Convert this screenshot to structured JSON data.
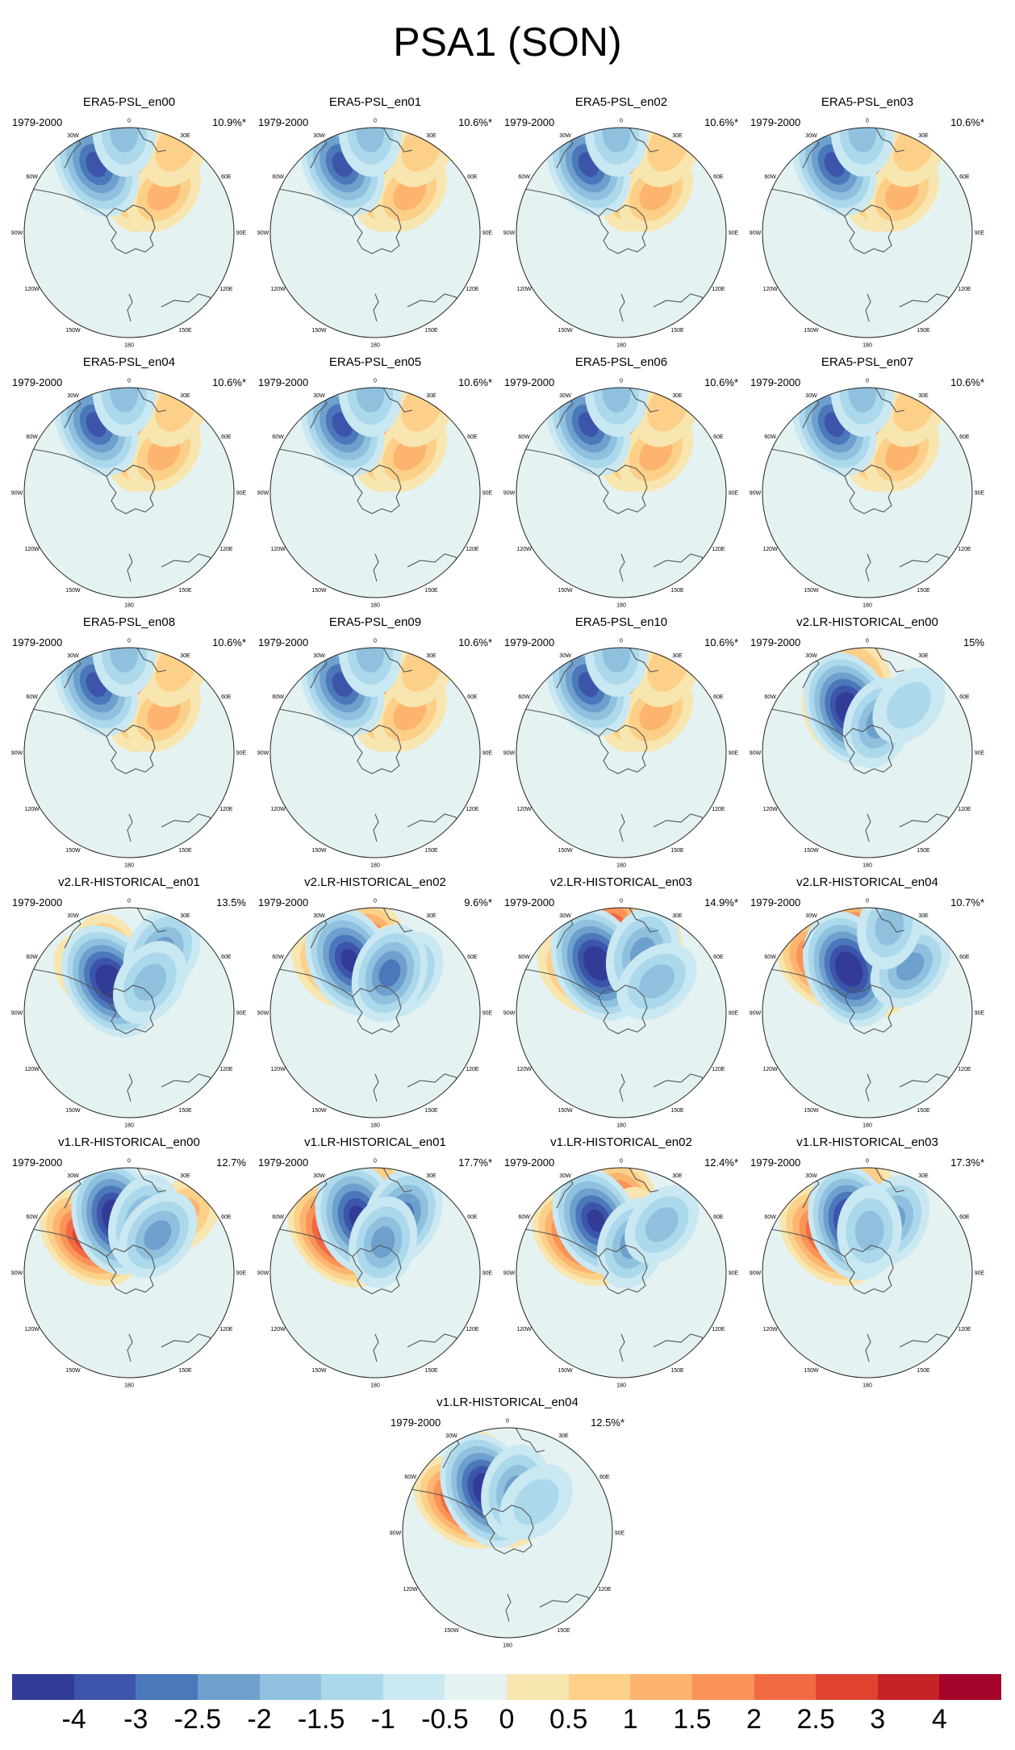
{
  "figure": {
    "title": "PSA1 (SON)",
    "period_label": "1979-2000",
    "lon_labels": [
      "0",
      "30E",
      "60E",
      "90E",
      "120E",
      "150E",
      "180",
      "150W",
      "120W",
      "90W",
      "60W",
      "30W"
    ]
  },
  "panels": [
    {
      "title": "ERA5-PSL_en00",
      "pct": "10.9%*",
      "highs": [
        [
          0.25,
          0.48,
          0.55
        ],
        [
          0.72,
          0.5,
          0.35
        ],
        [
          0.5,
          0.93,
          0.3
        ]
      ],
      "lows": [
        [
          -0.45,
          0.72,
          0.8
        ],
        [
          -0.05,
          0.95,
          0.35
        ]
      ]
    },
    {
      "title": "ERA5-PSL_en01",
      "pct": "10.6%*",
      "highs": [
        [
          0.25,
          0.48,
          0.55
        ],
        [
          0.72,
          0.5,
          0.35
        ],
        [
          0.5,
          0.93,
          0.3
        ]
      ],
      "lows": [
        [
          -0.45,
          0.72,
          0.75
        ],
        [
          -0.05,
          0.95,
          0.35
        ]
      ]
    },
    {
      "title": "ERA5-PSL_en02",
      "pct": "10.6%*",
      "highs": [
        [
          0.25,
          0.48,
          0.55
        ],
        [
          0.72,
          0.5,
          0.35
        ],
        [
          0.5,
          0.93,
          0.3
        ]
      ],
      "lows": [
        [
          -0.45,
          0.72,
          0.75
        ],
        [
          -0.05,
          0.95,
          0.35
        ]
      ]
    },
    {
      "title": "ERA5-PSL_en03",
      "pct": "10.6%*",
      "highs": [
        [
          0.25,
          0.48,
          0.55
        ],
        [
          0.72,
          0.5,
          0.35
        ],
        [
          0.5,
          0.93,
          0.3
        ]
      ],
      "lows": [
        [
          -0.45,
          0.72,
          0.75
        ],
        [
          -0.05,
          0.95,
          0.35
        ]
      ]
    },
    {
      "title": "ERA5-PSL_en04",
      "pct": "10.6%*",
      "highs": [
        [
          0.25,
          0.48,
          0.55
        ],
        [
          0.72,
          0.5,
          0.35
        ],
        [
          0.5,
          0.93,
          0.3
        ]
      ],
      "lows": [
        [
          -0.45,
          0.72,
          0.75
        ],
        [
          -0.05,
          0.95,
          0.35
        ]
      ]
    },
    {
      "title": "ERA5-PSL_en05",
      "pct": "10.6%*",
      "highs": [
        [
          0.25,
          0.48,
          0.55
        ],
        [
          0.72,
          0.5,
          0.35
        ],
        [
          0.5,
          0.93,
          0.3
        ]
      ],
      "lows": [
        [
          -0.45,
          0.72,
          0.75
        ],
        [
          -0.05,
          0.95,
          0.35
        ]
      ]
    },
    {
      "title": "ERA5-PSL_en06",
      "pct": "10.6%*",
      "highs": [
        [
          0.25,
          0.48,
          0.55
        ],
        [
          0.72,
          0.5,
          0.35
        ],
        [
          0.5,
          0.93,
          0.3
        ]
      ],
      "lows": [
        [
          -0.45,
          0.72,
          0.75
        ],
        [
          -0.05,
          0.95,
          0.35
        ]
      ]
    },
    {
      "title": "ERA5-PSL_en07",
      "pct": "10.6%*",
      "highs": [
        [
          0.25,
          0.48,
          0.55
        ],
        [
          0.72,
          0.5,
          0.35
        ],
        [
          0.5,
          0.93,
          0.3
        ]
      ],
      "lows": [
        [
          -0.45,
          0.72,
          0.75
        ],
        [
          -0.05,
          0.95,
          0.35
        ]
      ]
    },
    {
      "title": "ERA5-PSL_en08",
      "pct": "10.6%*",
      "highs": [
        [
          0.25,
          0.48,
          0.55
        ],
        [
          0.72,
          0.5,
          0.35
        ],
        [
          0.5,
          0.93,
          0.3
        ]
      ],
      "lows": [
        [
          -0.45,
          0.72,
          0.75
        ],
        [
          -0.05,
          0.95,
          0.35
        ]
      ]
    },
    {
      "title": "ERA5-PSL_en09",
      "pct": "10.6%*",
      "highs": [
        [
          0.25,
          0.48,
          0.55
        ],
        [
          0.72,
          0.5,
          0.35
        ],
        [
          0.5,
          0.93,
          0.3
        ]
      ],
      "lows": [
        [
          -0.45,
          0.72,
          0.75
        ],
        [
          -0.05,
          0.95,
          0.35
        ]
      ]
    },
    {
      "title": "ERA5-PSL_en10",
      "pct": "10.6%*",
      "highs": [
        [
          0.25,
          0.48,
          0.55
        ],
        [
          0.72,
          0.5,
          0.35
        ],
        [
          0.5,
          0.93,
          0.3
        ]
      ],
      "lows": [
        [
          -0.45,
          0.72,
          0.75
        ],
        [
          -0.05,
          0.95,
          0.35
        ]
      ]
    },
    {
      "title": "v2.LR-HISTORICAL_en00",
      "pct": "15%",
      "highs": [
        [
          -0.15,
          0.65,
          0.55
        ],
        [
          -0.6,
          0.42,
          0.6
        ]
      ],
      "lows": [
        [
          -0.4,
          0.45,
          0.95
        ],
        [
          0.35,
          0.3,
          0.45
        ],
        [
          0.72,
          0.6,
          0.3
        ]
      ]
    },
    {
      "title": "v2.LR-HISTORICAL_en01",
      "pct": "13.5%",
      "highs": [
        [
          -0.35,
          0.55,
          0.45
        ],
        [
          0.2,
          0.3,
          0.4
        ],
        [
          -0.75,
          0.5,
          0.45
        ]
      ],
      "lows": [
        [
          -0.55,
          0.35,
          1.0
        ],
        [
          0.5,
          0.65,
          0.55
        ],
        [
          0.6,
          0.35,
          0.4
        ]
      ]
    },
    {
      "title": "v2.LR-HISTORICAL_en02",
      "pct": "9.6%*",
      "highs": [
        [
          -0.1,
          0.55,
          0.85
        ],
        [
          -0.75,
          0.6,
          0.5
        ],
        [
          0.3,
          0.42,
          0.5
        ]
      ],
      "lows": [
        [
          -0.45,
          0.55,
          0.9
        ],
        [
          0.65,
          0.45,
          0.5
        ],
        [
          0.35,
          0.4,
          0.6
        ]
      ]
    },
    {
      "title": "v2.LR-HISTORICAL_en03",
      "pct": "14.9%*",
      "highs": [
        [
          0.35,
          0.55,
          0.8
        ],
        [
          -0.1,
          0.75,
          0.75
        ],
        [
          -0.8,
          0.55,
          0.55
        ]
      ],
      "lows": [
        [
          -0.45,
          0.52,
          1.0
        ],
        [
          0.35,
          0.6,
          0.55
        ],
        [
          0.85,
          0.45,
          0.4
        ]
      ]
    },
    {
      "title": "v2.LR-HISTORICAL_en04",
      "pct": "10.7%*",
      "highs": [
        [
          0.3,
          0.5,
          0.9
        ],
        [
          -0.15,
          0.6,
          0.95
        ],
        [
          -0.75,
          0.65,
          0.7
        ]
      ],
      "lows": [
        [
          -0.4,
          0.45,
          1.0
        ],
        [
          0.75,
          0.6,
          0.45
        ],
        [
          0.25,
          0.85,
          0.35
        ]
      ]
    },
    {
      "title": "v1.LR-HISTORICAL_en00",
      "pct": "12.7%",
      "highs": [
        [
          -0.85,
          0.5,
          0.85
        ],
        [
          -0.2,
          0.65,
          0.5
        ],
        [
          0.75,
          0.75,
          0.35
        ]
      ],
      "lows": [
        [
          -0.25,
          0.55,
          0.95
        ],
        [
          0.3,
          0.5,
          0.55
        ],
        [
          0.65,
          0.45,
          0.5
        ]
      ]
    },
    {
      "title": "v1.LR-HISTORICAL_en01",
      "pct": "17.7%*",
      "highs": [
        [
          -0.75,
          0.5,
          1.0
        ],
        [
          0.05,
          0.65,
          0.55
        ]
      ],
      "lows": [
        [
          -0.3,
          0.55,
          0.9
        ],
        [
          0.45,
          0.6,
          0.65
        ],
        [
          0.25,
          0.3,
          0.45
        ]
      ]
    },
    {
      "title": "v1.LR-HISTORICAL_en02",
      "pct": "12.4%*",
      "highs": [
        [
          -0.85,
          0.5,
          0.85
        ],
        [
          -0.05,
          0.55,
          0.9
        ],
        [
          0.2,
          0.4,
          0.4
        ]
      ],
      "lows": [
        [
          -0.45,
          0.55,
          0.85
        ],
        [
          0.35,
          0.3,
          0.45
        ],
        [
          0.7,
          0.6,
          0.35
        ]
      ]
    },
    {
      "title": "v1.LR-HISTORICAL_en03",
      "pct": "17.3%*",
      "highs": [
        [
          -0.8,
          0.5,
          0.9
        ],
        [
          -0.05,
          0.7,
          0.45
        ]
      ],
      "lows": [
        [
          -0.3,
          0.5,
          0.95
        ],
        [
          0.45,
          0.55,
          0.5
        ],
        [
          0.05,
          0.4,
          0.4
        ]
      ]
    },
    {
      "title": "v1.LR-HISTORICAL_en04",
      "pct": "12.5%*",
      "highs": [
        [
          -0.95,
          0.5,
          0.85
        ],
        [
          -0.4,
          0.6,
          0.45
        ],
        [
          0.3,
          0.3,
          0.45
        ]
      ],
      "lows": [
        [
          -0.45,
          0.45,
          1.0
        ],
        [
          0.2,
          0.4,
          0.5
        ],
        [
          0.75,
          0.4,
          0.3
        ]
      ]
    }
  ],
  "colorbar": {
    "colors": [
      "#323c96",
      "#3c55aa",
      "#4b78ba",
      "#6ea0cd",
      "#8fc1de",
      "#acd8eb",
      "#c9e8f2",
      "#e4f2f2",
      "#f8e6b0",
      "#fcd088",
      "#fcb46e",
      "#fa9357",
      "#f26a43",
      "#e0432f",
      "#c62327",
      "#a5052b"
    ],
    "tick_labels": [
      "-4",
      "-3",
      "-2.5",
      "-2",
      "-1.5",
      "-1",
      "-0.5",
      "0",
      "0.5",
      "1",
      "1.5",
      "2",
      "2.5",
      "3",
      "4"
    ]
  }
}
